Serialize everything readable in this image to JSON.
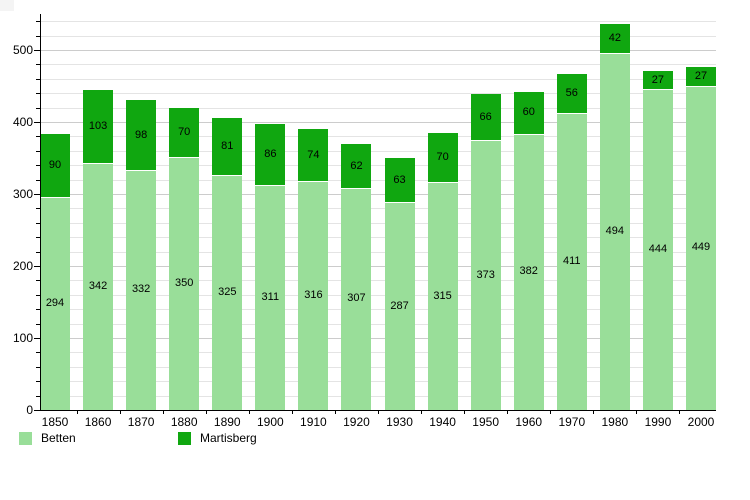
{
  "chart_data": {
    "type": "bar",
    "stacked": true,
    "title": "",
    "xlabel": "",
    "ylabel": "",
    "categories": [
      "1850",
      "1860",
      "1870",
      "1880",
      "1890",
      "1900",
      "1910",
      "1920",
      "1930",
      "1940",
      "1950",
      "1960",
      "1970",
      "1980",
      "1990",
      "2000"
    ],
    "series": [
      {
        "name": "Betten",
        "color": "#99de99",
        "values": [
          294,
          342,
          332,
          350,
          325,
          311,
          316,
          307,
          287,
          315,
          373,
          382,
          411,
          494,
          444,
          449
        ]
      },
      {
        "name": "Martisberg",
        "color": "#10a710",
        "values": [
          90,
          103,
          98,
          70,
          81,
          86,
          74,
          62,
          63,
          70,
          66,
          60,
          56,
          42,
          27,
          27
        ]
      }
    ],
    "ylim": [
      0,
      550
    ],
    "ytick_labels": [
      "0",
      "100",
      "200",
      "300",
      "400",
      "500"
    ],
    "ytick_major_step": 100,
    "ytick_minor_step": 20,
    "grid": "horizontal",
    "value_labels": "inside-center",
    "legend_position": "bottom-left"
  },
  "colors": {
    "background": "#ffffff",
    "axis": "#000000",
    "grid_minor": "#e4e4e4",
    "grid_major": "#cccccc",
    "text": "#000000"
  }
}
